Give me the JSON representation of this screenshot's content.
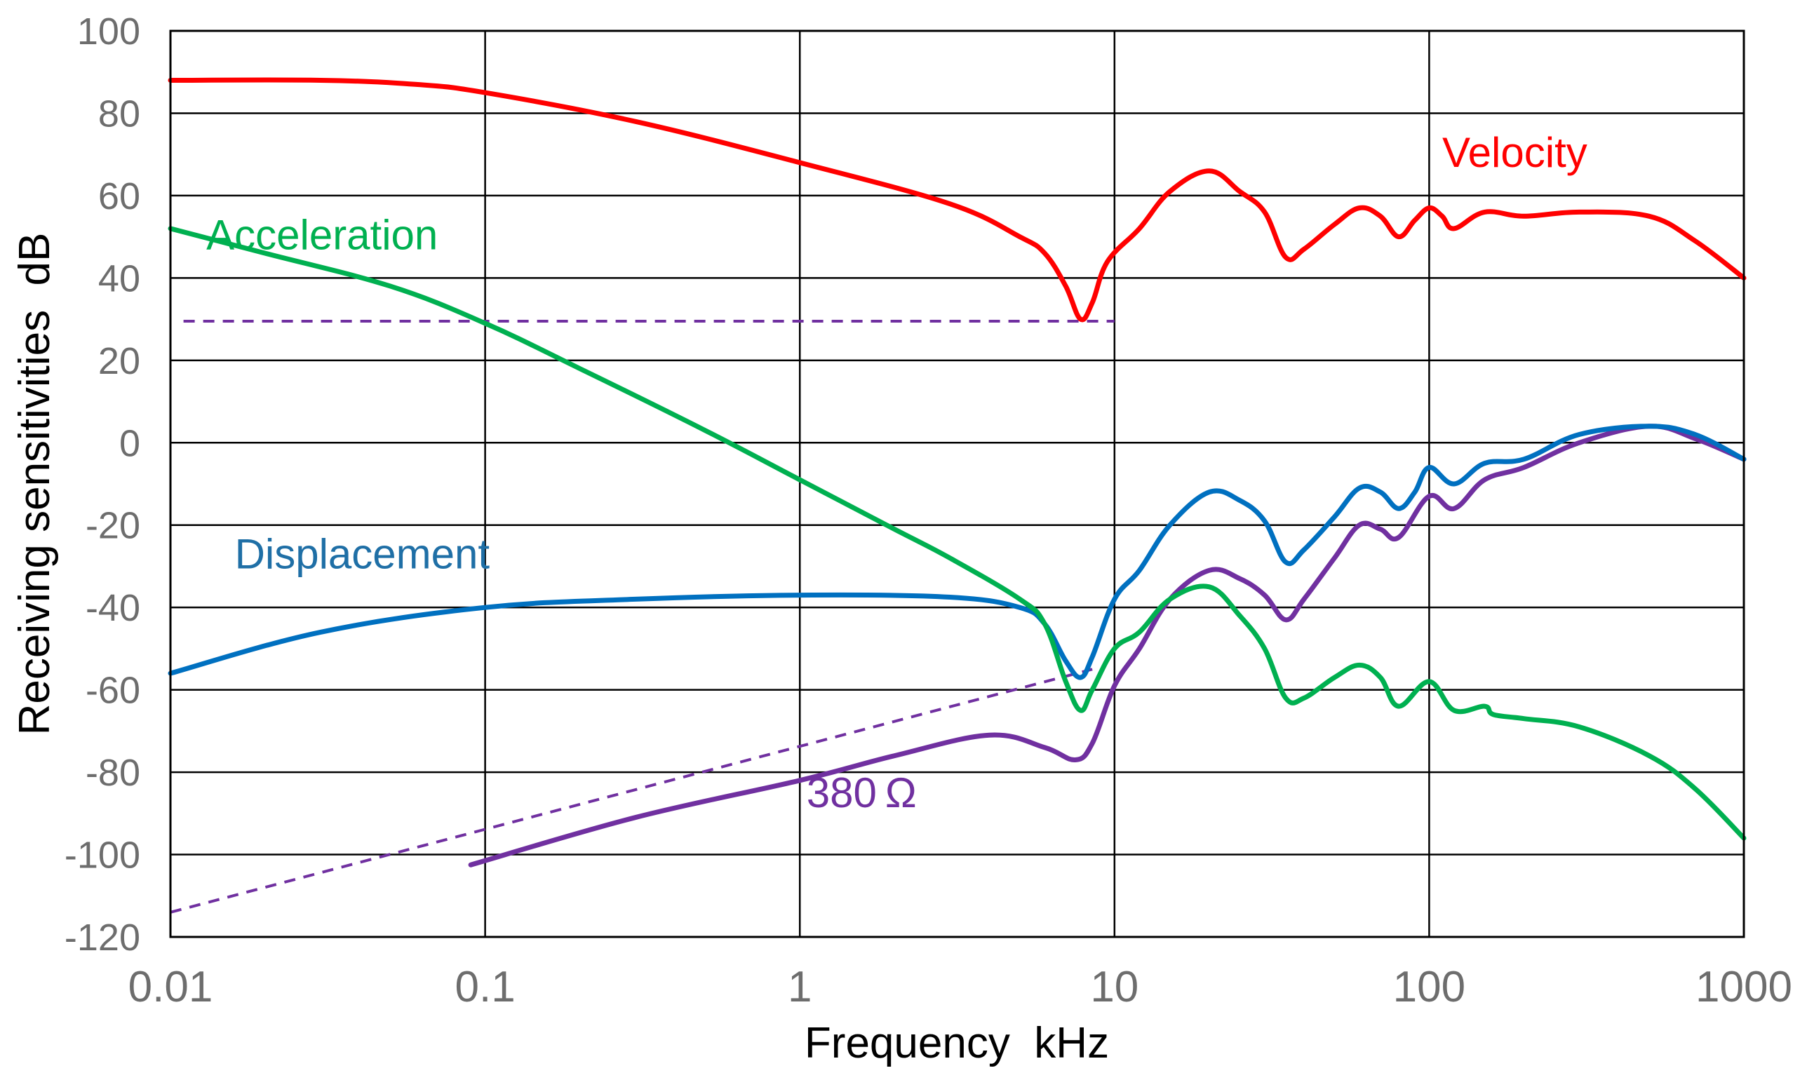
{
  "chart_data": {
    "type": "line",
    "title": "",
    "xlabel": "Frequency  kHz",
    "ylabel": "Receiving sensitivities  dB",
    "xscale": "log",
    "xlim": [
      0.01,
      1000
    ],
    "ylim": [
      -120,
      100
    ],
    "grid": true,
    "x_ticks": [
      "0.01",
      "0.1",
      "1",
      "10",
      "100",
      "1000"
    ],
    "x_tick_values": [
      0.01,
      0.1,
      1,
      10,
      100,
      1000
    ],
    "y_ticks": [
      "100",
      "80",
      "60",
      "40",
      "20",
      "0",
      "-20",
      "-40",
      "-60",
      "-80",
      "-100",
      "-120"
    ],
    "y_tick_values": [
      100,
      80,
      60,
      40,
      20,
      0,
      -20,
      -40,
      -60,
      -80,
      -100,
      -120
    ],
    "series": [
      {
        "name": "Velocity",
        "color": "#ff0000",
        "style": "solid",
        "points": [
          [
            0.01,
            88
          ],
          [
            0.03,
            88
          ],
          [
            0.06,
            87
          ],
          [
            0.1,
            85
          ],
          [
            0.3,
            78
          ],
          [
            1,
            68
          ],
          [
            3,
            58
          ],
          [
            5,
            50
          ],
          [
            6,
            46
          ],
          [
            7,
            38
          ],
          [
            7.8,
            30
          ],
          [
            8.5,
            34
          ],
          [
            9.5,
            44
          ],
          [
            12,
            52
          ],
          [
            15,
            61
          ],
          [
            20,
            66
          ],
          [
            25,
            61
          ],
          [
            30,
            56
          ],
          [
            35,
            45
          ],
          [
            40,
            47
          ],
          [
            50,
            53
          ],
          [
            60,
            57
          ],
          [
            70,
            55
          ],
          [
            80,
            50
          ],
          [
            90,
            54
          ],
          [
            100,
            57
          ],
          [
            110,
            55
          ],
          [
            120,
            52
          ],
          [
            150,
            56
          ],
          [
            200,
            55
          ],
          [
            300,
            56
          ],
          [
            500,
            55
          ],
          [
            700,
            49
          ],
          [
            1000,
            40
          ]
        ]
      },
      {
        "name": "Acceleration",
        "color": "#00b050",
        "style": "solid",
        "points": [
          [
            0.01,
            52
          ],
          [
            0.02,
            46
          ],
          [
            0.05,
            38
          ],
          [
            0.1,
            29
          ],
          [
            0.2,
            18
          ],
          [
            0.5,
            3
          ],
          [
            1,
            -9
          ],
          [
            2,
            -21
          ],
          [
            3,
            -28
          ],
          [
            5,
            -38
          ],
          [
            6,
            -44
          ],
          [
            7,
            -58
          ],
          [
            7.8,
            -65
          ],
          [
            8.5,
            -60
          ],
          [
            10,
            -50
          ],
          [
            12,
            -46
          ],
          [
            15,
            -38
          ],
          [
            20,
            -35
          ],
          [
            25,
            -42
          ],
          [
            30,
            -50
          ],
          [
            35,
            -62
          ],
          [
            40,
            -62
          ],
          [
            50,
            -57
          ],
          [
            60,
            -54
          ],
          [
            70,
            -57
          ],
          [
            80,
            -64
          ],
          [
            100,
            -58
          ],
          [
            120,
            -65
          ],
          [
            150,
            -64
          ],
          [
            160,
            -66
          ],
          [
            200,
            -67
          ],
          [
            300,
            -69
          ],
          [
            500,
            -76
          ],
          [
            700,
            -84
          ],
          [
            1000,
            -96
          ]
        ]
      },
      {
        "name": "Displacement",
        "color": "#0070c0",
        "style": "solid",
        "points": [
          [
            0.01,
            -56
          ],
          [
            0.03,
            -46
          ],
          [
            0.1,
            -40
          ],
          [
            0.3,
            -38
          ],
          [
            1,
            -37
          ],
          [
            3,
            -37.5
          ],
          [
            5,
            -40
          ],
          [
            6,
            -44
          ],
          [
            7,
            -53
          ],
          [
            7.8,
            -57
          ],
          [
            8.5,
            -52
          ],
          [
            10,
            -38
          ],
          [
            12,
            -31
          ],
          [
            15,
            -20
          ],
          [
            20,
            -12
          ],
          [
            25,
            -14
          ],
          [
            30,
            -19
          ],
          [
            35,
            -29
          ],
          [
            40,
            -26
          ],
          [
            50,
            -18
          ],
          [
            60,
            -11
          ],
          [
            70,
            -12
          ],
          [
            80,
            -16
          ],
          [
            90,
            -12
          ],
          [
            100,
            -6
          ],
          [
            120,
            -10
          ],
          [
            150,
            -5
          ],
          [
            200,
            -4
          ],
          [
            300,
            2
          ],
          [
            500,
            4
          ],
          [
            700,
            2
          ],
          [
            1000,
            -4
          ]
        ]
      },
      {
        "name": "380 Ω",
        "color": "#7030a0",
        "style": "solid",
        "points": [
          [
            0.09,
            -102.5
          ],
          [
            0.3,
            -91
          ],
          [
            1,
            -82
          ],
          [
            2,
            -76
          ],
          [
            4,
            -71
          ],
          [
            6,
            -74
          ],
          [
            7.5,
            -77
          ],
          [
            8.5,
            -73
          ],
          [
            10,
            -59
          ],
          [
            12,
            -50
          ],
          [
            15,
            -38
          ],
          [
            20,
            -31
          ],
          [
            25,
            -33
          ],
          [
            30,
            -37
          ],
          [
            35,
            -43
          ],
          [
            40,
            -38
          ],
          [
            50,
            -28
          ],
          [
            60,
            -20
          ],
          [
            70,
            -21
          ],
          [
            80,
            -23
          ],
          [
            100,
            -13
          ],
          [
            120,
            -16
          ],
          [
            150,
            -9
          ],
          [
            200,
            -6
          ],
          [
            300,
            0
          ],
          [
            500,
            4
          ],
          [
            700,
            1
          ],
          [
            1000,
            -4
          ]
        ]
      },
      {
        "name": "velocity-dashed-reference",
        "color": "#7030a0",
        "style": "dashed",
        "points": [
          [
            0.011,
            29.5
          ],
          [
            10,
            29.5
          ]
        ]
      },
      {
        "name": "380-ohm-dashed-reference",
        "color": "#7030a0",
        "style": "dashed",
        "points": [
          [
            0.01,
            -114
          ],
          [
            8.5,
            -55
          ]
        ]
      }
    ],
    "annotations": [
      {
        "text": "Velocity",
        "color": "#ff0000",
        "anchor": [
          110,
          67
        ]
      },
      {
        "text": "Acceleration",
        "color": "#00b050",
        "anchor": [
          0.013,
          47
        ]
      },
      {
        "text": "Displacement",
        "color": "#1f6fa6",
        "anchor": [
          0.016,
          -30.5
        ]
      },
      {
        "text": "380 Ω",
        "color": "#7030a0",
        "anchor": [
          1.05,
          -88.5
        ]
      }
    ]
  }
}
